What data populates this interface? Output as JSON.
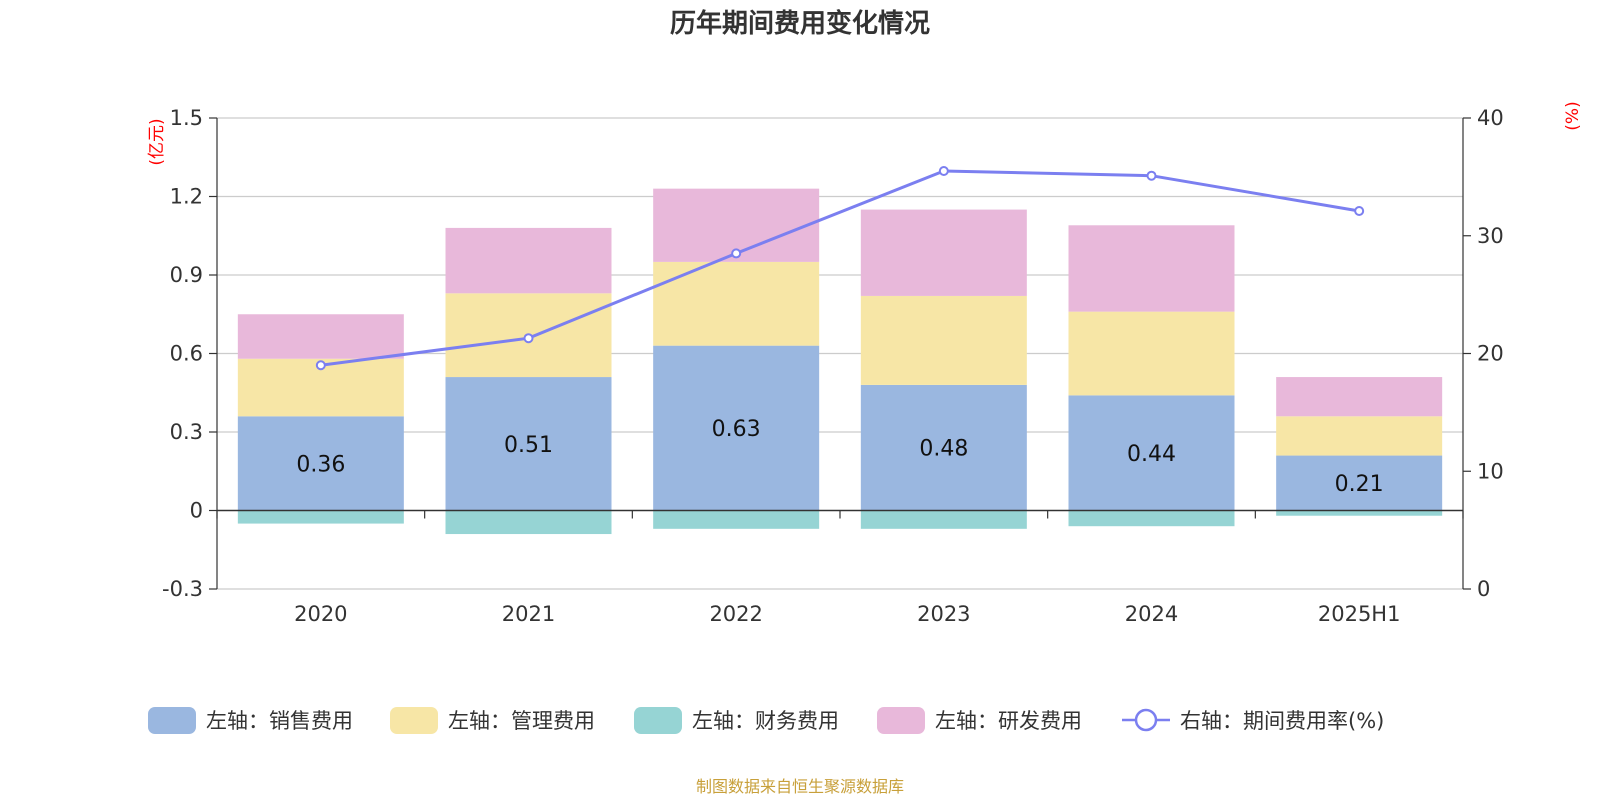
{
  "chart_data": {
    "type": "bar",
    "title": "历年期间费用变化情况",
    "categories": [
      "2020",
      "2021",
      "2022",
      "2023",
      "2024",
      "2025H1"
    ],
    "left_axis": {
      "unit": "(亿元)",
      "ylim": [
        -0.3,
        1.5
      ],
      "ticks": [
        "-0.3",
        "0",
        "0.3",
        "0.6",
        "0.9",
        "1.2",
        "1.5"
      ]
    },
    "right_axis": {
      "unit": "(%)",
      "ylim": [
        0,
        40
      ],
      "ticks": [
        "0",
        "10",
        "20",
        "30",
        "40"
      ]
    },
    "stacked": true,
    "grid": true,
    "legend_position": "bottom",
    "series": [
      {
        "name": "左轴：销售费用",
        "axis": "left",
        "kind": "bar",
        "color": "#9ab7e0",
        "values": [
          0.36,
          0.51,
          0.63,
          0.48,
          0.44,
          0.21
        ],
        "data_labels": [
          "0.36",
          "0.51",
          "0.63",
          "0.48",
          "0.44",
          "0.21"
        ]
      },
      {
        "name": "左轴：管理费用",
        "axis": "left",
        "kind": "bar",
        "color": "#f7e6a6",
        "values": [
          0.22,
          0.32,
          0.32,
          0.34,
          0.32,
          0.15
        ]
      },
      {
        "name": "左轴：财务费用",
        "axis": "left",
        "kind": "bar",
        "color": "#96d4d4",
        "values": [
          -0.05,
          -0.09,
          -0.07,
          -0.07,
          -0.06,
          -0.02
        ]
      },
      {
        "name": "左轴：研发费用",
        "axis": "left",
        "kind": "bar",
        "color": "#e8b8da",
        "values": [
          0.17,
          0.25,
          0.28,
          0.33,
          0.33,
          0.15
        ]
      },
      {
        "name": "右轴：期间费用率(%)",
        "axis": "right",
        "kind": "line",
        "color": "#7b7ff0",
        "values": [
          19.0,
          21.3,
          28.5,
          35.5,
          35.1,
          32.1
        ]
      }
    ]
  },
  "footer": {
    "source": "制图数据来自恒生聚源数据库"
  }
}
